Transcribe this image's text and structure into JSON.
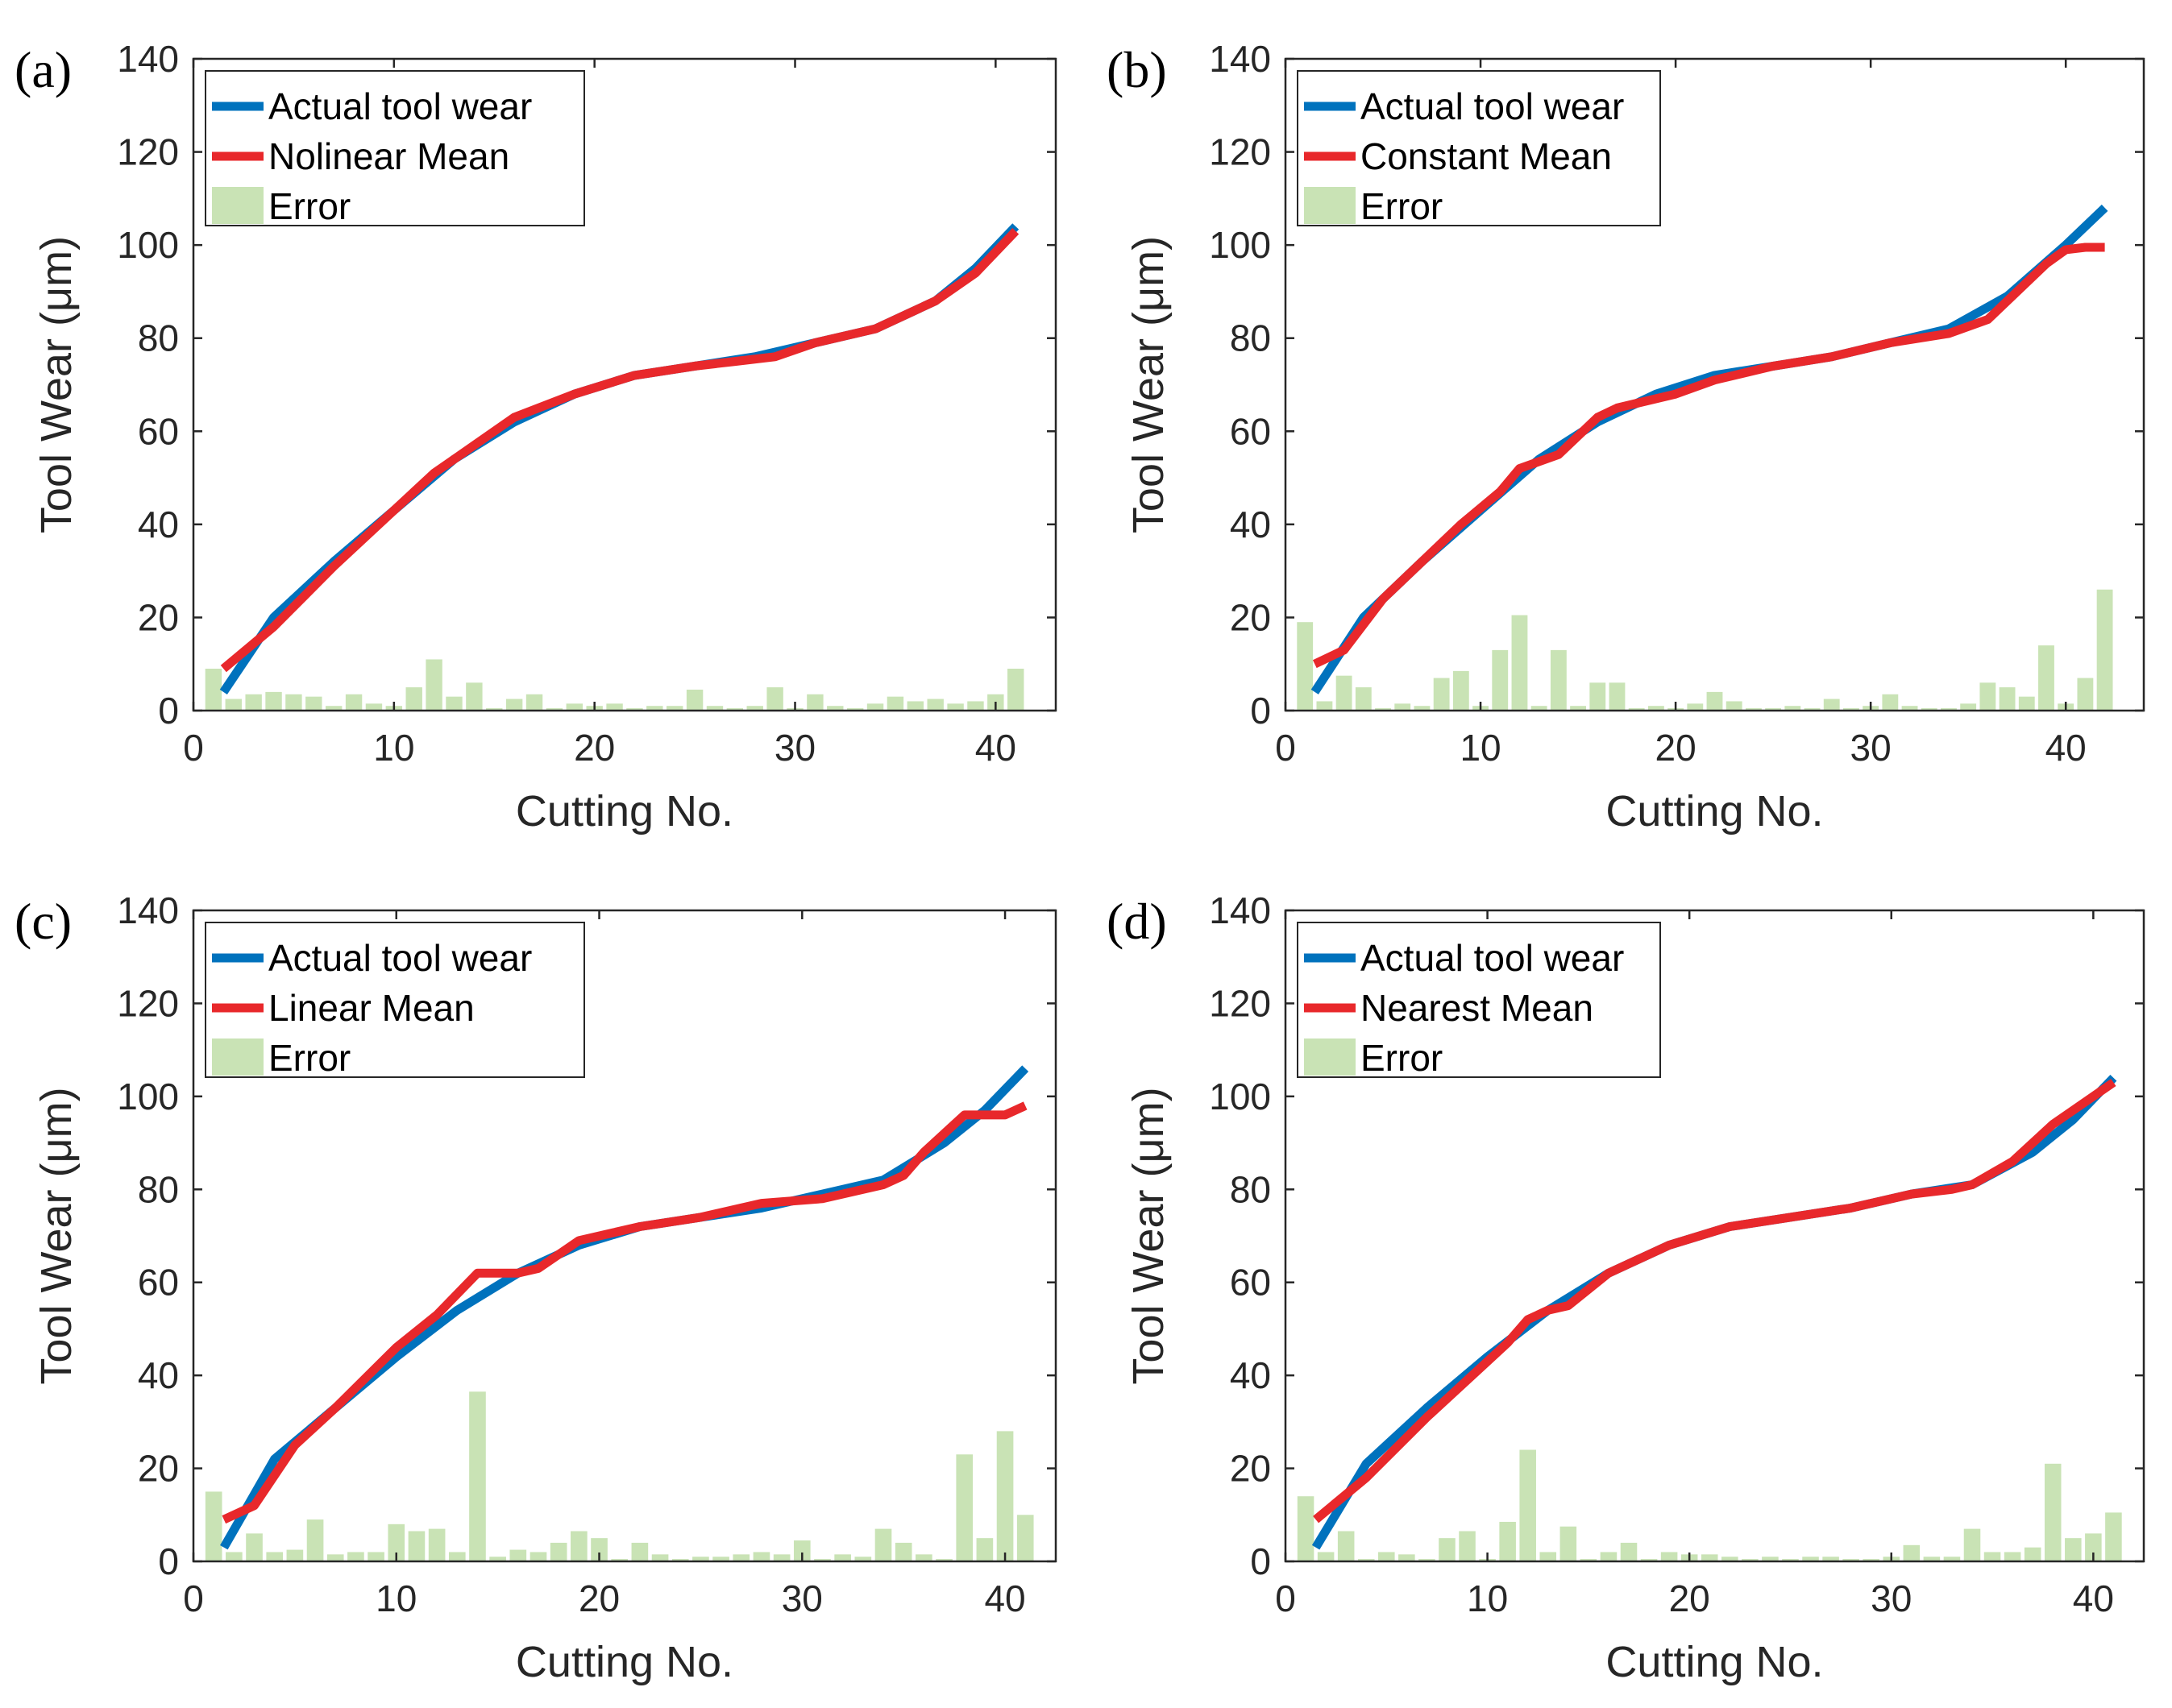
{
  "figure": {
    "x_label": "Cutting No.",
    "y_label": "Tool Wear (μm)",
    "colors": {
      "actual": "#0072BD",
      "mean": "#E8282B",
      "error": "#C9E3B5",
      "axis": "#262626"
    }
  },
  "chart_data": [
    {
      "panel_letter": "(a)",
      "type": "line",
      "title": "",
      "xlabel": "Cutting No.",
      "ylabel": "Tool Wear (μm)",
      "xlim": [
        0,
        43
      ],
      "ylim": [
        0,
        140
      ],
      "xticks": [
        0,
        10,
        20,
        30,
        40
      ],
      "yticks": [
        0,
        20,
        40,
        60,
        80,
        100,
        120,
        140
      ],
      "legend": [
        "Actual tool wear",
        "Nolinear Mean",
        "Error"
      ],
      "legend_position": "top-left",
      "actual": {
        "x": [
          1.5,
          4,
          7,
          10,
          13,
          16,
          19,
          22,
          25,
          28,
          31,
          34,
          37,
          39,
          41
        ],
        "y": [
          4,
          20,
          32,
          43,
          54,
          62,
          68,
          72,
          74,
          76,
          79,
          82,
          88,
          95,
          104
        ]
      },
      "mean": {
        "x": [
          1.5,
          4,
          7,
          10,
          12,
          13,
          16,
          19,
          22,
          25,
          27,
          29,
          31,
          34,
          37,
          39,
          41
        ],
        "y": [
          9,
          18,
          31,
          43,
          51,
          54,
          63,
          68,
          72,
          74,
          75,
          76,
          79,
          82,
          88,
          94,
          103
        ]
      },
      "error": {
        "x": [
          1,
          2,
          3,
          4,
          5,
          6,
          7,
          8,
          9,
          10,
          11,
          12,
          13,
          14,
          15,
          16,
          17,
          18,
          19,
          20,
          21,
          22,
          23,
          24,
          25,
          26,
          27,
          28,
          29,
          30,
          31,
          32,
          33,
          34,
          35,
          36,
          37,
          38,
          39,
          40,
          41
        ],
        "y": [
          9,
          2.5,
          3.5,
          4,
          3.5,
          3,
          1,
          3.5,
          1.5,
          1,
          5,
          11,
          3,
          6,
          0.5,
          2.5,
          3.5,
          0.5,
          1.5,
          1,
          1.5,
          0.5,
          1,
          1,
          4.5,
          1,
          0.5,
          1,
          5,
          0.5,
          3.5,
          1,
          0.5,
          1.5,
          3,
          2,
          2.5,
          1.5,
          2,
          3.5,
          9
        ]
      }
    },
    {
      "panel_letter": "(b)",
      "type": "line",
      "title": "",
      "xlabel": "Cutting No.",
      "ylabel": "Tool Wear (μm)",
      "xlim": [
        0,
        44
      ],
      "ylim": [
        0,
        140
      ],
      "xticks": [
        0,
        10,
        20,
        30,
        40
      ],
      "yticks": [
        0,
        20,
        40,
        60,
        80,
        100,
        120,
        140
      ],
      "legend": [
        "Actual tool wear",
        "Constant Mean",
        "Error"
      ],
      "legend_position": "top-left",
      "actual": {
        "x": [
          1.5,
          4,
          7,
          10,
          13,
          16,
          19,
          22,
          25,
          28,
          31,
          34,
          37,
          40,
          42
        ],
        "y": [
          4,
          20,
          32,
          43,
          54,
          62,
          68,
          72,
          74,
          76,
          79,
          82,
          89,
          100,
          108
        ]
      },
      "mean": {
        "x": [
          1.5,
          3,
          5,
          7,
          9,
          11,
          12,
          14,
          16,
          17,
          20,
          22,
          25,
          28,
          31,
          34,
          36,
          37,
          39,
          40,
          41,
          42
        ],
        "y": [
          10,
          13,
          24,
          32,
          40,
          47,
          52,
          55,
          63,
          65,
          68,
          71,
          74,
          76,
          79,
          81,
          84,
          88,
          96,
          99,
          99.5,
          99.5
        ]
      },
      "error": {
        "x": [
          1,
          2,
          3,
          4,
          5,
          6,
          7,
          8,
          9,
          10,
          11,
          12,
          13,
          14,
          15,
          16,
          17,
          18,
          19,
          20,
          21,
          22,
          23,
          24,
          25,
          26,
          27,
          28,
          29,
          30,
          31,
          32,
          33,
          34,
          35,
          36,
          37,
          38,
          39,
          40,
          41,
          42
        ],
        "y": [
          19,
          2,
          7.5,
          5,
          0.5,
          1.5,
          1,
          7,
          8.5,
          1,
          13,
          20.5,
          1,
          13,
          1,
          6,
          6,
          0.5,
          1,
          0.5,
          1.5,
          4,
          2,
          0.5,
          0.5,
          1,
          0.5,
          2.5,
          0.5,
          1,
          3.5,
          1,
          0.5,
          0.5,
          1.5,
          6,
          5,
          3,
          14,
          1.5,
          7,
          26
        ]
      }
    },
    {
      "panel_letter": "(c)",
      "type": "line",
      "title": "",
      "xlabel": "Cutting No.",
      "ylabel": "Tool Wear (μm)",
      "xlim": [
        0,
        42.5
      ],
      "ylim": [
        0,
        140
      ],
      "xticks": [
        0,
        10,
        20,
        30,
        40
      ],
      "yticks": [
        0,
        20,
        40,
        60,
        80,
        100,
        120,
        140
      ],
      "legend": [
        "Actual tool wear",
        "Linear Mean",
        "Error"
      ],
      "legend_position": "top-left",
      "actual": {
        "x": [
          1.5,
          4,
          7,
          10,
          13,
          16,
          19,
          22,
          25,
          28,
          31,
          34,
          37,
          39,
          41
        ],
        "y": [
          3,
          22,
          33,
          44,
          54,
          62,
          68,
          72,
          74,
          76,
          79,
          82,
          90,
          97,
          106
        ]
      },
      "mean": {
        "x": [
          1.5,
          3,
          5,
          7,
          10,
          12,
          14,
          15,
          16,
          17,
          19,
          22,
          25,
          28,
          31,
          34,
          35,
          36,
          38,
          39,
          40,
          41
        ],
        "y": [
          9,
          12,
          25,
          33,
          46,
          53,
          62,
          62,
          62,
          63,
          69,
          72,
          74,
          77,
          78,
          81,
          83,
          88,
          96,
          96,
          96,
          98
        ]
      },
      "error": {
        "x": [
          1,
          2,
          3,
          4,
          5,
          6,
          7,
          8,
          9,
          10,
          11,
          12,
          13,
          14,
          15,
          16,
          17,
          18,
          19,
          20,
          21,
          22,
          23,
          24,
          25,
          26,
          27,
          28,
          29,
          30,
          31,
          32,
          33,
          34,
          35,
          36,
          37,
          38,
          39,
          40,
          41
        ],
        "y": [
          15,
          2,
          6,
          2,
          2.5,
          9,
          1.5,
          2,
          2,
          8,
          6.5,
          7,
          2,
          36.5,
          1,
          2.5,
          2,
          4,
          6.5,
          5,
          0.5,
          4,
          1.5,
          0.5,
          1,
          1,
          1.5,
          2,
          1.5,
          4.5,
          0.5,
          1.5,
          1,
          7,
          4,
          1.5,
          0.5,
          23,
          5,
          28,
          10
        ]
      }
    },
    {
      "panel_letter": "(d)",
      "type": "line",
      "title": "",
      "xlabel": "Cutting No.",
      "ylabel": "Tool Wear (μm)",
      "xlim": [
        0,
        42.5
      ],
      "ylim": [
        0,
        140
      ],
      "xticks": [
        0,
        10,
        20,
        30,
        40
      ],
      "yticks": [
        0,
        20,
        40,
        60,
        80,
        100,
        120,
        140
      ],
      "legend": [
        "Actual tool wear",
        "Nearest Mean",
        "Error"
      ],
      "legend_position": "top-left",
      "actual": {
        "x": [
          1.5,
          4,
          7,
          10,
          13,
          16,
          19,
          22,
          25,
          28,
          31,
          34,
          37,
          39,
          41
        ],
        "y": [
          3,
          21,
          33,
          44,
          54,
          62,
          68,
          72,
          74,
          76,
          79,
          81,
          88,
          95,
          104
        ]
      },
      "mean": {
        "x": [
          1.5,
          4,
          7,
          10,
          11,
          12,
          13,
          14,
          16,
          19,
          22,
          25,
          28,
          31,
          33,
          34,
          36,
          38,
          41
        ],
        "y": [
          9,
          18,
          31,
          43,
          47,
          52,
          54,
          55,
          62,
          68,
          72,
          74,
          76,
          79,
          80,
          81,
          86,
          94,
          103
        ]
      },
      "error": {
        "x": [
          1,
          2,
          3,
          4,
          5,
          6,
          7,
          8,
          9,
          10,
          11,
          12,
          13,
          14,
          15,
          16,
          17,
          18,
          19,
          20,
          21,
          22,
          23,
          24,
          25,
          26,
          27,
          28,
          29,
          30,
          31,
          32,
          33,
          34,
          35,
          36,
          37,
          38,
          39,
          40,
          41
        ],
        "y": [
          14,
          2,
          6.5,
          0.5,
          2,
          1.5,
          0.5,
          5,
          6.5,
          0.5,
          8.5,
          24,
          2,
          7.5,
          0.5,
          2,
          4,
          0.5,
          2,
          1.5,
          1.5,
          1,
          0.5,
          1,
          0.5,
          1,
          1,
          0.5,
          0.5,
          1,
          3.5,
          1,
          1,
          7,
          2,
          2,
          3,
          21,
          5,
          6,
          10.5
        ]
      }
    }
  ]
}
